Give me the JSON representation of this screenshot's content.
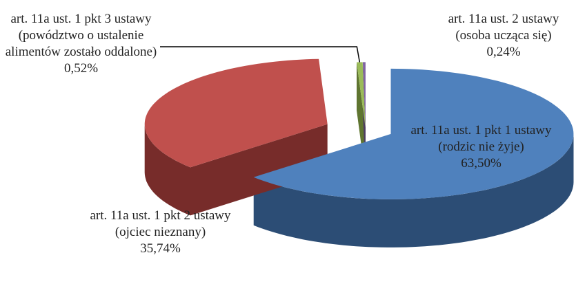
{
  "chart_data": {
    "type": "pie",
    "categories": [
      "art. 11a ust. 1 pkt 1 ustawy (rodzic nie żyje)",
      "art. 11a ust. 1 pkt 2 ustawy (ojciec nieznany)",
      "art. 11a ust. 1 pkt 3 ustawy (powództwo o ustalenie alimentów zostało oddalone)",
      "art. 11a ust. 2 ustawy (osoba ucząca się)"
    ],
    "values": [
      63.5,
      35.74,
      0.52,
      0.24
    ],
    "value_labels": [
      "63,50%",
      "35,74%",
      "0,52%",
      "0,24%"
    ],
    "colors": [
      "#4f81bd",
      "#c0504d",
      "#9bbb59",
      "#8064a2"
    ],
    "side_colors": [
      "#2c4d75",
      "#772c2a",
      "#5f7530",
      "#4d3b62"
    ]
  }
}
